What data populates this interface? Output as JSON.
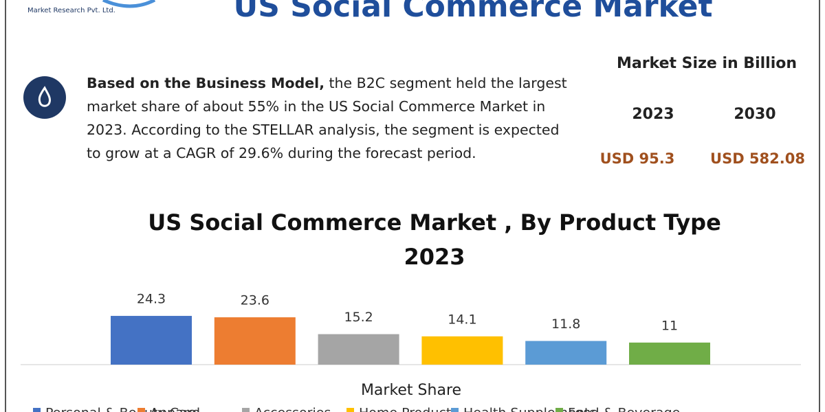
{
  "header": {
    "title": "US Social Commerce Market",
    "logo_text": "Market Research Pvt. Ltd."
  },
  "summary": {
    "lead": "Based on the Business Model,",
    "body": " the B2C segment held the largest market share of about 55% in the US Social Commerce Market in 2023. According to the STELLAR analysis, the segment is expected to grow at a CAGR of 29.6% during the forecast period."
  },
  "market_size": {
    "title": "Market Size in Billion",
    "years": [
      "2023",
      "2030"
    ],
    "values": [
      "USD 95.3",
      "USD 582.08"
    ]
  },
  "chart_data": {
    "type": "bar",
    "title": "US Social Commerce Market , By Product Type",
    "subtitle": "2023",
    "x_label": "Market Share",
    "series": [
      {
        "name": "Personal & Beauty Care",
        "color": "#4472c4",
        "values": [
          24.3
        ]
      },
      {
        "name": "Apparel",
        "color": "#ed7d31",
        "values": [
          23.6
        ]
      },
      {
        "name": "Accessories",
        "color": "#a5a5a5",
        "values": [
          15.2
        ]
      },
      {
        "name": "Home Products",
        "color": "#ffc000",
        "values": [
          14.1
        ]
      },
      {
        "name": "Health Supplements",
        "color": "#5b9bd5",
        "values": [
          11.8
        ]
      },
      {
        "name": "Food & Beverage",
        "color": "#70ad47",
        "values": [
          11
        ]
      }
    ]
  }
}
